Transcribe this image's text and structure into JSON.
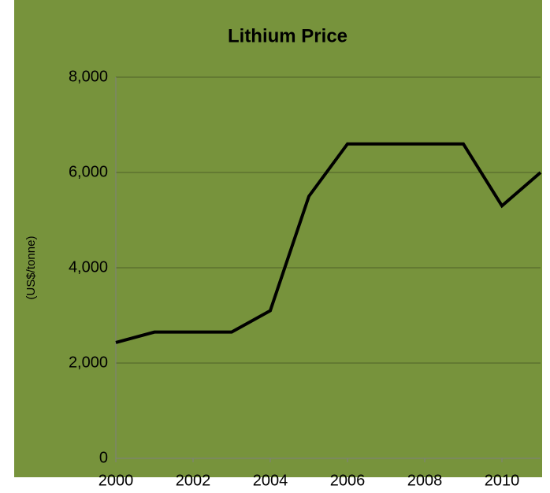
{
  "chart_data": {
    "type": "line",
    "title": "Lithium Price",
    "y_label": "(US$/tonne)",
    "x": [
      2000,
      2001,
      2002,
      2003,
      2004,
      2005,
      2006,
      2007,
      2008,
      2009,
      2010,
      2011
    ],
    "series": [
      {
        "name": "Lithium Price",
        "color": "#000000",
        "values": [
          2430,
          2650,
          2650,
          2650,
          3100,
          5500,
          6600,
          6600,
          6600,
          6600,
          5300,
          6000
        ]
      }
    ],
    "xlim": [
      2000,
      2011
    ],
    "xticks": [
      2000,
      2002,
      2004,
      2006,
      2008,
      2010
    ],
    "ylim": [
      0,
      8000
    ],
    "yticks": [
      0,
      {
        "value": 2000,
        "label": "2,000"
      },
      {
        "value": 4000,
        "label": "4,000"
      },
      {
        "value": 6000,
        "label": "6,000"
      },
      {
        "value": 8000,
        "label": "8,000"
      }
    ],
    "grid": true,
    "background": "#77933c"
  }
}
